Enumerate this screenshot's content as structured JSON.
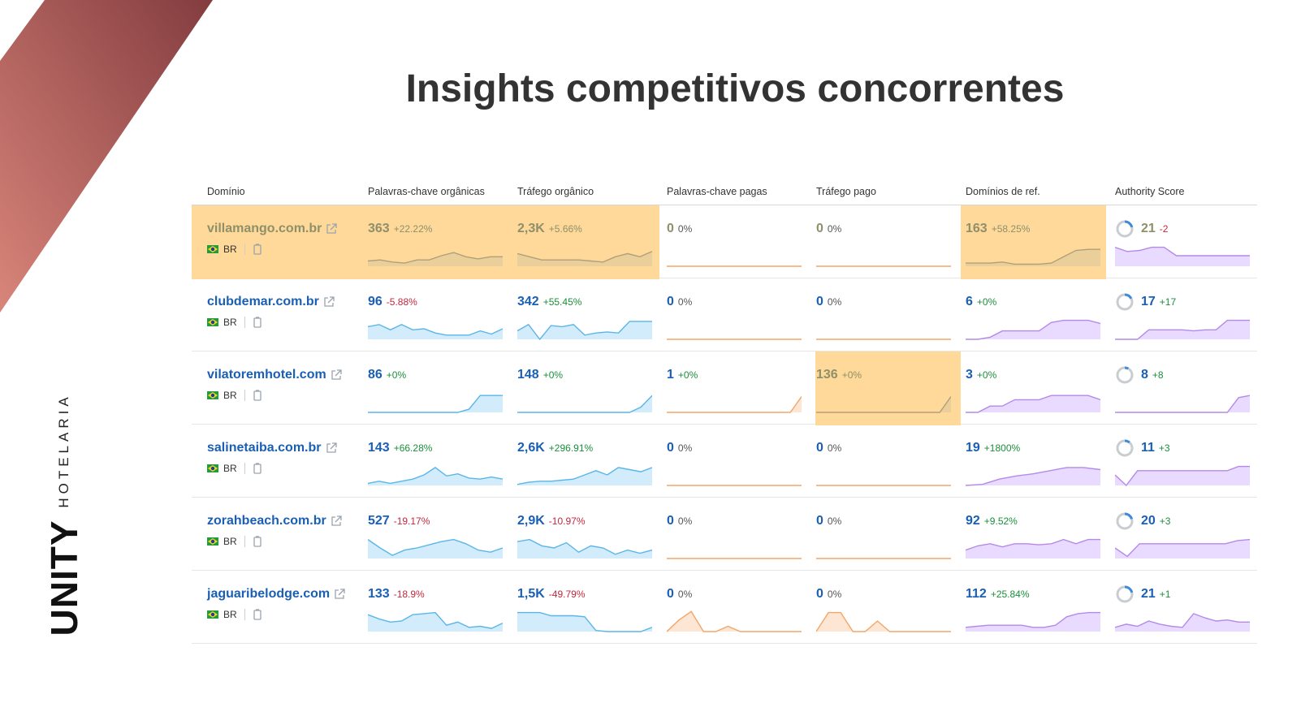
{
  "slide": {
    "title": "Insights competitivos concorrentes"
  },
  "brand": {
    "name": "UNITY",
    "subtitle": "HOTELARIA"
  },
  "colors": {
    "accent_blue": "#1a5fb4",
    "highlight": "#fed999",
    "positive": "#1b8f3a",
    "negative": "#c0293e",
    "organic_fill": "#d2ecfb",
    "paid_line": "#f2a66a",
    "ref_fill": "#e9dbff"
  },
  "table": {
    "headers": [
      "Domínio",
      "Palavras-chave orgânicas",
      "Tráfego orgânico",
      "Palavras-chave pagas",
      "Tráfego pago",
      "Domínios de ref.",
      "Authority Score"
    ],
    "rows": [
      {
        "domain": "villamango.com.br",
        "country": "BR",
        "org_kw": "363",
        "org_kw_chg": "+22.22%",
        "org_tr": "2,3K",
        "org_tr_chg": "+5.66%",
        "paid_kw": "0",
        "paid_kw_chg": "0%",
        "paid_tr": "0",
        "paid_tr_chg": "0%",
        "ref": "163",
        "ref_chg": "+58.25%",
        "as": "21",
        "as_chg": "-2",
        "as_progress": 0.21,
        "highlight": [
          "org_kw",
          "org_tr",
          "ref",
          "domain"
        ],
        "spark": {
          "org_kw": [
            5,
            6,
            4,
            3,
            6,
            6,
            10,
            13,
            9,
            7,
            9,
            9
          ],
          "org_tr": [
            12,
            9,
            6,
            6,
            6,
            6,
            5,
            4,
            9,
            12,
            9,
            14
          ],
          "paid_kw": [
            0,
            0,
            0,
            0,
            0,
            0,
            0,
            0,
            0,
            0,
            0,
            0
          ],
          "paid_tr": [
            0,
            0,
            0,
            0,
            0,
            0,
            0,
            0,
            0,
            0,
            0,
            0
          ],
          "ref": [
            3,
            3,
            3,
            4,
            2,
            2,
            2,
            3,
            9,
            15,
            16,
            16
          ],
          "as": [
            18,
            14,
            15,
            18,
            18,
            10,
            10,
            10,
            10,
            10,
            10,
            10
          ]
        }
      },
      {
        "domain": "clubdemar.com.br",
        "country": "BR",
        "org_kw": "96",
        "org_kw_chg": "-5.88%",
        "org_tr": "342",
        "org_tr_chg": "+55.45%",
        "paid_kw": "0",
        "paid_kw_chg": "0%",
        "paid_tr": "0",
        "paid_tr_chg": "0%",
        "ref": "6",
        "ref_chg": "+0%",
        "as": "17",
        "as_chg": "+17",
        "as_progress": 0.17,
        "highlight": [],
        "spark": {
          "org_kw": [
            12,
            14,
            9,
            14,
            9,
            10,
            6,
            4,
            4,
            4,
            8,
            5,
            10
          ],
          "org_tr": [
            8,
            14,
            0,
            13,
            12,
            14,
            4,
            6,
            7,
            6,
            17,
            17,
            17
          ],
          "paid_kw": [
            0,
            0,
            0,
            0,
            0,
            0,
            0,
            0,
            0,
            0,
            0,
            0
          ],
          "paid_tr": [
            0,
            0,
            0,
            0,
            0,
            0,
            0,
            0,
            0,
            0,
            0,
            0
          ],
          "ref": [
            0,
            0,
            2,
            8,
            8,
            8,
            8,
            16,
            18,
            18,
            18,
            15
          ],
          "as": [
            0,
            0,
            0,
            9,
            9,
            9,
            9,
            8,
            9,
            9,
            18,
            18,
            18
          ]
        }
      },
      {
        "domain": "vilatoremhotel.com",
        "country": "BR",
        "org_kw": "86",
        "org_kw_chg": "+0%",
        "org_tr": "148",
        "org_tr_chg": "+0%",
        "paid_kw": "1",
        "paid_kw_chg": "+0%",
        "paid_tr": "136",
        "paid_tr_chg": "+0%",
        "ref": "3",
        "ref_chg": "+0%",
        "as": "8",
        "as_chg": "+8",
        "as_progress": 0.08,
        "highlight": [
          "paid_tr"
        ],
        "spark": {
          "org_kw": [
            0,
            0,
            0,
            0,
            0,
            0,
            0,
            0,
            0,
            3,
            16,
            16,
            16
          ],
          "org_tr": [
            0,
            0,
            0,
            0,
            0,
            0,
            0,
            0,
            0,
            0,
            0,
            5,
            16
          ],
          "paid_kw": [
            0,
            0,
            0,
            0,
            0,
            0,
            0,
            0,
            0,
            0,
            0,
            0,
            15
          ],
          "paid_tr": [
            0,
            0,
            0,
            0,
            0,
            0,
            0,
            0,
            0,
            0,
            0,
            0,
            15
          ],
          "ref": [
            0,
            0,
            6,
            6,
            12,
            12,
            12,
            16,
            16,
            16,
            16,
            12
          ],
          "as": [
            0,
            0,
            0,
            0,
            0,
            0,
            0,
            0,
            0,
            0,
            0,
            14,
            16
          ]
        }
      },
      {
        "domain": "salinetaiba.com.br",
        "country": "BR",
        "org_kw": "143",
        "org_kw_chg": "+66.28%",
        "org_tr": "2,6K",
        "org_tr_chg": "+296.91%",
        "paid_kw": "0",
        "paid_kw_chg": "0%",
        "paid_tr": "0",
        "paid_tr_chg": "0%",
        "ref": "19",
        "ref_chg": "+1800%",
        "as": "11",
        "as_chg": "+3",
        "as_progress": 0.11,
        "highlight": [],
        "spark": {
          "org_kw": [
            2,
            4,
            2,
            4,
            6,
            10,
            17,
            9,
            11,
            7,
            6,
            8,
            6
          ],
          "org_tr": [
            1,
            3,
            4,
            4,
            5,
            6,
            10,
            14,
            10,
            17,
            15,
            13,
            17
          ],
          "paid_kw": [
            0,
            0,
            0,
            0,
            0,
            0,
            0,
            0,
            0,
            0,
            0,
            0
          ],
          "paid_tr": [
            0,
            0,
            0,
            0,
            0,
            0,
            0,
            0,
            0,
            0,
            0,
            0
          ],
          "ref": [
            0,
            1,
            6,
            9,
            11,
            14,
            17,
            17,
            15
          ],
          "as": [
            10,
            0,
            14,
            14,
            14,
            14,
            14,
            14,
            14,
            14,
            14,
            18,
            18
          ]
        }
      },
      {
        "domain": "zorahbeach.com.br",
        "country": "BR",
        "org_kw": "527",
        "org_kw_chg": "-19.17%",
        "org_tr": "2,9K",
        "org_tr_chg": "-10.97%",
        "paid_kw": "0",
        "paid_kw_chg": "0%",
        "paid_tr": "0",
        "paid_tr_chg": "0%",
        "ref": "92",
        "ref_chg": "+9.52%",
        "as": "20",
        "as_chg": "+3",
        "as_progress": 0.2,
        "highlight": [],
        "spark": {
          "org_kw": [
            18,
            10,
            3,
            8,
            10,
            13,
            16,
            18,
            14,
            8,
            6,
            10
          ],
          "org_tr": [
            16,
            18,
            12,
            10,
            15,
            6,
            12,
            10,
            4,
            8,
            5,
            8
          ],
          "paid_kw": [
            0,
            0,
            0,
            0,
            0,
            0,
            0,
            0,
            0,
            0,
            0,
            0
          ],
          "paid_tr": [
            0,
            0,
            0,
            0,
            0,
            0,
            0,
            0,
            0,
            0,
            0,
            0
          ],
          "ref": [
            8,
            12,
            14,
            11,
            14,
            14,
            13,
            14,
            18,
            14,
            18,
            18
          ],
          "as": [
            10,
            2,
            14,
            14,
            14,
            14,
            14,
            14,
            14,
            14,
            17,
            18
          ]
        }
      },
      {
        "domain": "jaguaribelodge.com",
        "country": "BR",
        "org_kw": "133",
        "org_kw_chg": "-18.9%",
        "org_tr": "1,5K",
        "org_tr_chg": "-49.79%",
        "paid_kw": "0",
        "paid_kw_chg": "0%",
        "paid_tr": "0",
        "paid_tr_chg": "0%",
        "ref": "112",
        "ref_chg": "+25.84%",
        "as": "21",
        "as_chg": "+1",
        "as_progress": 0.21,
        "highlight": [],
        "spark": {
          "org_kw": [
            16,
            12,
            9,
            10,
            16,
            17,
            18,
            6,
            9,
            4,
            5,
            3,
            8
          ],
          "org_tr": [
            18,
            18,
            18,
            15,
            15,
            15,
            14,
            1,
            0,
            0,
            0,
            0,
            4
          ],
          "paid_kw": [
            0,
            11,
            19,
            0,
            0,
            5,
            0,
            0,
            0,
            0,
            0,
            0
          ],
          "paid_tr": [
            0,
            18,
            18,
            0,
            0,
            10,
            0,
            0,
            0,
            0,
            0,
            0
          ],
          "ref": [
            4,
            5,
            6,
            6,
            6,
            6,
            4,
            4,
            6,
            14,
            17,
            18,
            18
          ],
          "as": [
            4,
            7,
            5,
            10,
            7,
            5,
            4,
            17,
            13,
            10,
            11,
            9,
            9
          ]
        }
      }
    ]
  }
}
